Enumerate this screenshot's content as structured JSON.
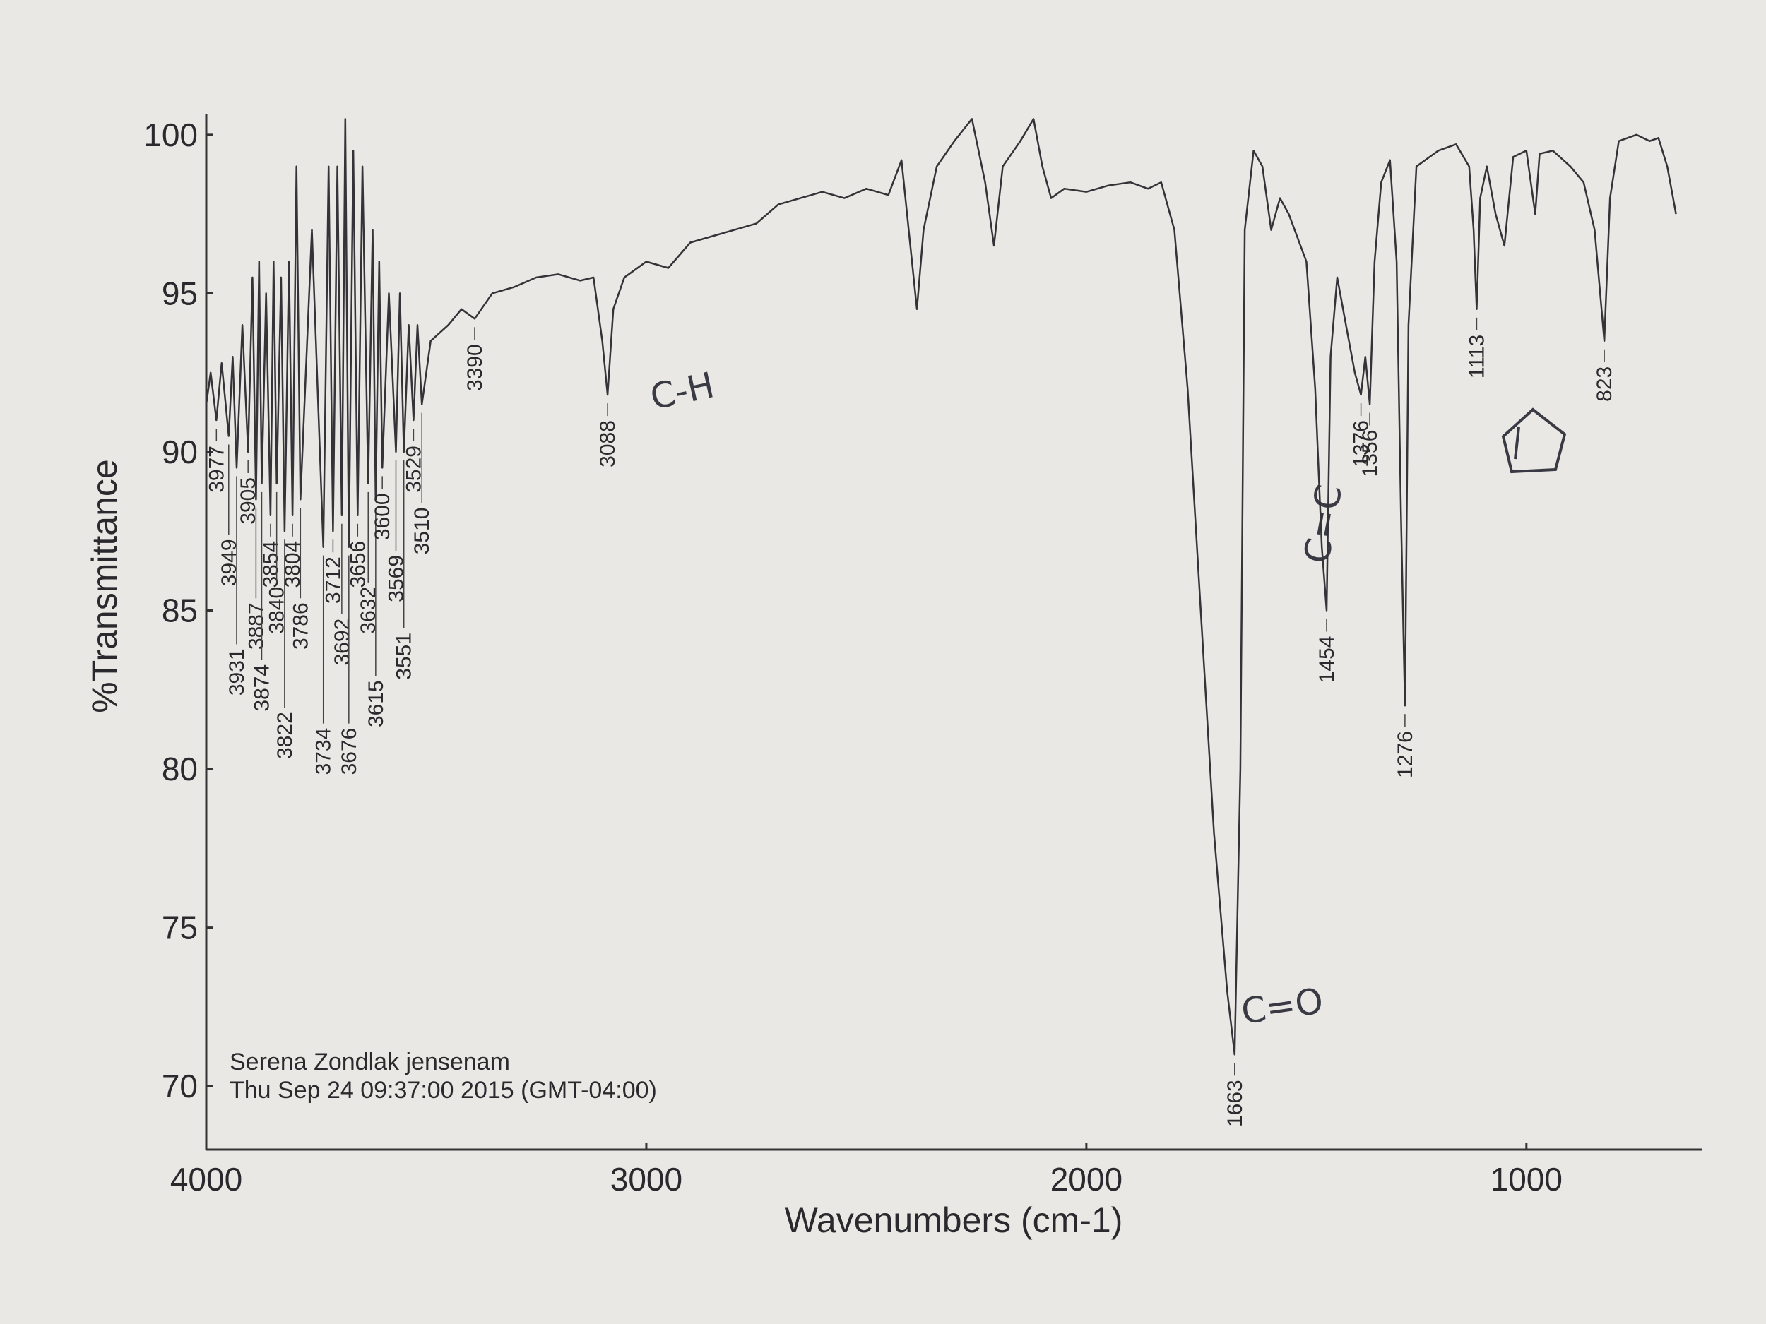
{
  "chart_data": {
    "type": "line",
    "xlabel": "Wavenumbers (cm-1)",
    "ylabel": "%Transmittance",
    "xlim": [
      4000,
      600
    ],
    "xticks": [
      4000,
      3000,
      2000,
      1000
    ],
    "ylim": [
      68,
      102
    ],
    "yticks": [
      70,
      75,
      80,
      85,
      90,
      95,
      100
    ],
    "color": "#333338",
    "x": [
      4000,
      3990,
      3977,
      3965,
      3949,
      3940,
      3931,
      3918,
      3905,
      3895,
      3887,
      3880,
      3874,
      3864,
      3854,
      3847,
      3840,
      3830,
      3822,
      3812,
      3804,
      3795,
      3786,
      3760,
      3734,
      3722,
      3712,
      3702,
      3692,
      3684,
      3676,
      3666,
      3656,
      3645,
      3632,
      3622,
      3615,
      3607,
      3600,
      3585,
      3569,
      3560,
      3551,
      3540,
      3529,
      3520,
      3510,
      3490,
      3450,
      3420,
      3390,
      3350,
      3300,
      3250,
      3200,
      3150,
      3120,
      3100,
      3088,
      3075,
      3050,
      3000,
      2950,
      2900,
      2850,
      2800,
      2750,
      2700,
      2650,
      2600,
      2550,
      2500,
      2450,
      2420,
      2400,
      2385,
      2370,
      2340,
      2300,
      2260,
      2230,
      2210,
      2190,
      2150,
      2120,
      2100,
      2080,
      2050,
      2000,
      1950,
      1900,
      1860,
      1830,
      1800,
      1770,
      1740,
      1710,
      1680,
      1663,
      1650,
      1640,
      1620,
      1600,
      1580,
      1560,
      1540,
      1500,
      1480,
      1465,
      1454,
      1445,
      1430,
      1410,
      1390,
      1376,
      1366,
      1356,
      1345,
      1330,
      1310,
      1295,
      1285,
      1276,
      1268,
      1250,
      1200,
      1160,
      1130,
      1120,
      1113,
      1105,
      1090,
      1070,
      1050,
      1030,
      1000,
      980,
      970,
      940,
      900,
      870,
      845,
      823,
      810,
      790,
      750,
      720,
      700,
      680,
      660
    ],
    "values": [
      91.5,
      92.5,
      91,
      92.8,
      90.5,
      93,
      89.5,
      94,
      90,
      95.5,
      88.5,
      96,
      89,
      95,
      88,
      96,
      89,
      95.5,
      87.5,
      96,
      88,
      99,
      88.5,
      97,
      87,
      99,
      87.5,
      99,
      88,
      100.5,
      87,
      99.5,
      88,
      99,
      89,
      97,
      88.5,
      96,
      89.5,
      95,
      90,
      95,
      90,
      94,
      91,
      94,
      91.5,
      93.5,
      94,
      94.5,
      94.2,
      95,
      95.2,
      95.5,
      95.6,
      95.4,
      95.5,
      93.5,
      91.8,
      94.5,
      95.5,
      96,
      95.8,
      96.6,
      96.8,
      97,
      97.2,
      97.8,
      98,
      98.2,
      98,
      98.3,
      98.1,
      99.2,
      96.5,
      94.5,
      97,
      99,
      99.8,
      100.5,
      98.5,
      96.5,
      99,
      99.8,
      100.5,
      99,
      98,
      98.3,
      98.2,
      98.4,
      98.5,
      98.3,
      98.5,
      97,
      92,
      85,
      78,
      73,
      71,
      80,
      97,
      99.5,
      99,
      97,
      98,
      97.5,
      96,
      92,
      87,
      85,
      93,
      95.5,
      94,
      92.5,
      91.8,
      93,
      91.5,
      96,
      98.5,
      99.2,
      96,
      88,
      82,
      94,
      99,
      99.5,
      99.7,
      99,
      97,
      94.5,
      98,
      99,
      97.5,
      96.5,
      99.3,
      99.5,
      97.5,
      99.4,
      99.5,
      99,
      98.5,
      97,
      93.5,
      98,
      99.8,
      100,
      99.8,
      99.9,
      99,
      97.5
    ],
    "peaks": [
      3977,
      3949,
      3931,
      3905,
      3887,
      3874,
      3854,
      3840,
      3822,
      3804,
      3786,
      3734,
      3712,
      3692,
      3676,
      3656,
      3632,
      3615,
      3600,
      3569,
      3551,
      3529,
      3510,
      3390,
      3088,
      1663,
      1454,
      1376,
      1356,
      1276,
      1113,
      823
    ],
    "annotations": [
      "C-H",
      "C=O",
      "C=C"
    ],
    "footer": [
      "Serena Zondlak jensenam",
      "Thu Sep 24 09:37:00 2015 (GMT-04:00)"
    ]
  }
}
